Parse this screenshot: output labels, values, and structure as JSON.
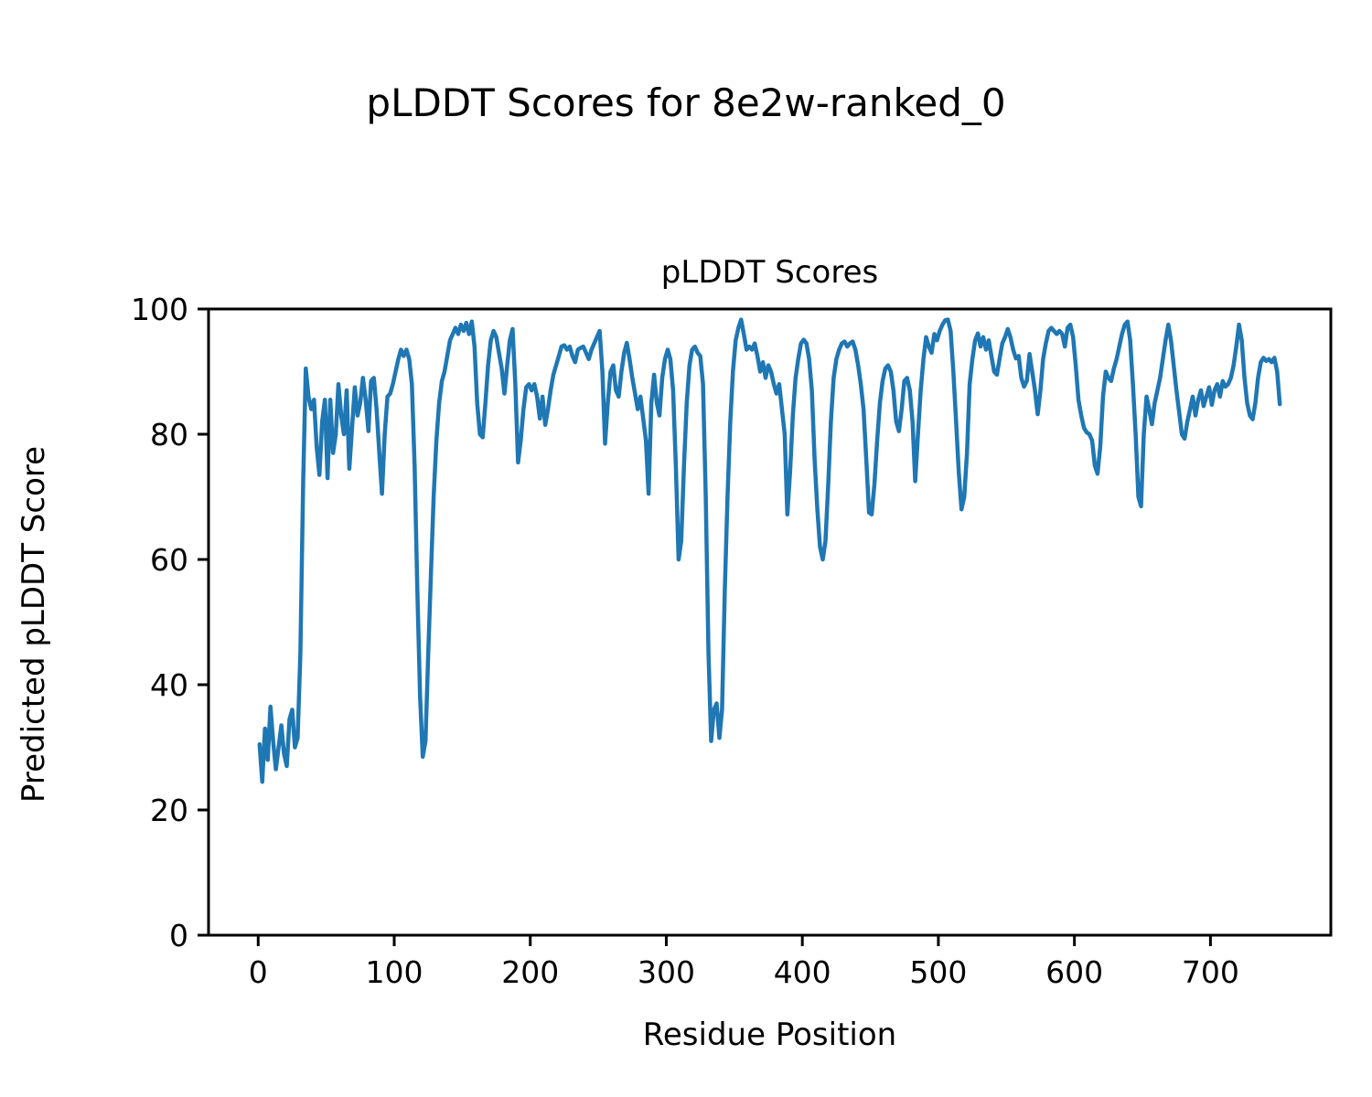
{
  "chart_data": {
    "type": "line",
    "title": "pLDDT Scores for 8e2w-ranked_0",
    "axes_title": "pLDDT Scores",
    "xlabel": "Residue Position",
    "ylabel": "Predicted pLDDT Score",
    "xlim": [
      -36.5,
      788.5
    ],
    "ylim": [
      0,
      100
    ],
    "xticks": [
      0,
      100,
      200,
      300,
      400,
      500,
      600,
      700
    ],
    "yticks": [
      0,
      20,
      40,
      60,
      80,
      100
    ],
    "grid": false,
    "legend": "none",
    "line_color": "#1f77b4",
    "background_color": "#ffffff",
    "text_color": "#000000",
    "series": [
      {
        "name": "pLDDT",
        "x_start": 1,
        "x_step": 2,
        "values": [
          30.5,
          24.5,
          33,
          28,
          36.5,
          31,
          26.5,
          30,
          33.5,
          29,
          27,
          34.5,
          36,
          30,
          31.5,
          45,
          72,
          90.5,
          86,
          84,
          85.5,
          78,
          73.5,
          82,
          85.5,
          73,
          85.5,
          77,
          80,
          88,
          83,
          80,
          87,
          74.5,
          81,
          87.5,
          83,
          85,
          89,
          85.5,
          80.5,
          88.5,
          89,
          84,
          77,
          70.5,
          80,
          86,
          86.5,
          88,
          90,
          92,
          93.5,
          92.5,
          93.5,
          92,
          88,
          75,
          55,
          38,
          28.5,
          31,
          45,
          58,
          70,
          79,
          85,
          88.5,
          90,
          92.5,
          95,
          96,
          97,
          96,
          97.5,
          96.5,
          97.8,
          96,
          98,
          94,
          85,
          80,
          79.5,
          85,
          91,
          95,
          96.5,
          95.5,
          93,
          90.5,
          86.5,
          91,
          95,
          96.8,
          88,
          75.5,
          79,
          84,
          87.5,
          88,
          87,
          88,
          86,
          82.5,
          86,
          81.5,
          84,
          87,
          89.5,
          91,
          92.5,
          94,
          94.2,
          93.5,
          94,
          92.5,
          91.5,
          93.5,
          93.8,
          94,
          93,
          92,
          93.5,
          94.5,
          95.5,
          96.5,
          90,
          78.5,
          85,
          90,
          91,
          87,
          86,
          90,
          93,
          94.6,
          92,
          89,
          86.5,
          84,
          86,
          82.5,
          79,
          70.5,
          85,
          89.5,
          85,
          83,
          89,
          92,
          93.5,
          92,
          87,
          75,
          60,
          63,
          75,
          85,
          91,
          93.5,
          94,
          93,
          92.5,
          88,
          70,
          45,
          31,
          36,
          37,
          31.5,
          36,
          55,
          70,
          82,
          90,
          95,
          97,
          98.3,
          96,
          93.5,
          94,
          93.5,
          94.5,
          92.5,
          90,
          91.5,
          89,
          91,
          90,
          88,
          86.5,
          88,
          84,
          80,
          67.2,
          74,
          83,
          89,
          92,
          94.5,
          95.1,
          94.5,
          92,
          87,
          76,
          68,
          62,
          60,
          63,
          72,
          82,
          89,
          92,
          93.5,
          94.5,
          94.8,
          94,
          94.5,
          94.8,
          93.5,
          91,
          88,
          84,
          76,
          67.5,
          67.2,
          72,
          79,
          85,
          88.5,
          90.5,
          91,
          90,
          87,
          82,
          80.5,
          84,
          88.5,
          89,
          87,
          82,
          72.5,
          80,
          87,
          92,
          95.5,
          94,
          93,
          96,
          95,
          96.5,
          97.5,
          98.2,
          98.3,
          96.5,
          90,
          82,
          74,
          68,
          70,
          77,
          88,
          92,
          95,
          96.1,
          94,
          95.5,
          93.5,
          95,
          92.5,
          90,
          89.5,
          92,
          94.5,
          95.5,
          96.8,
          95.5,
          93.5,
          92.1,
          92.5,
          89,
          87.6,
          88.5,
          92.8,
          90,
          87,
          83.2,
          87,
          92,
          94.5,
          96.5,
          97,
          96.5,
          96,
          96.5,
          96,
          94,
          97,
          97.5,
          95.5,
          91,
          85.5,
          83,
          81,
          80.3,
          80,
          79,
          75,
          73.7,
          78,
          86,
          90,
          89,
          88.5,
          90.5,
          92,
          94,
          96,
          97.5,
          98,
          95,
          88,
          80,
          70,
          68.5,
          80,
          86,
          84,
          81.6,
          85,
          87,
          89,
          92,
          95,
          97.5,
          95,
          91,
          87,
          83.5,
          80,
          79.3,
          82,
          84,
          86,
          83,
          85.5,
          87,
          84.5,
          86,
          87.5,
          84.7,
          87,
          88,
          86,
          88.5,
          87.6,
          88,
          89,
          91,
          94,
          97.5,
          95,
          89,
          85,
          83,
          82.4,
          85,
          89,
          91.5,
          92.2,
          91.7,
          92,
          91.5,
          92.2,
          90,
          84.8
        ]
      }
    ]
  }
}
